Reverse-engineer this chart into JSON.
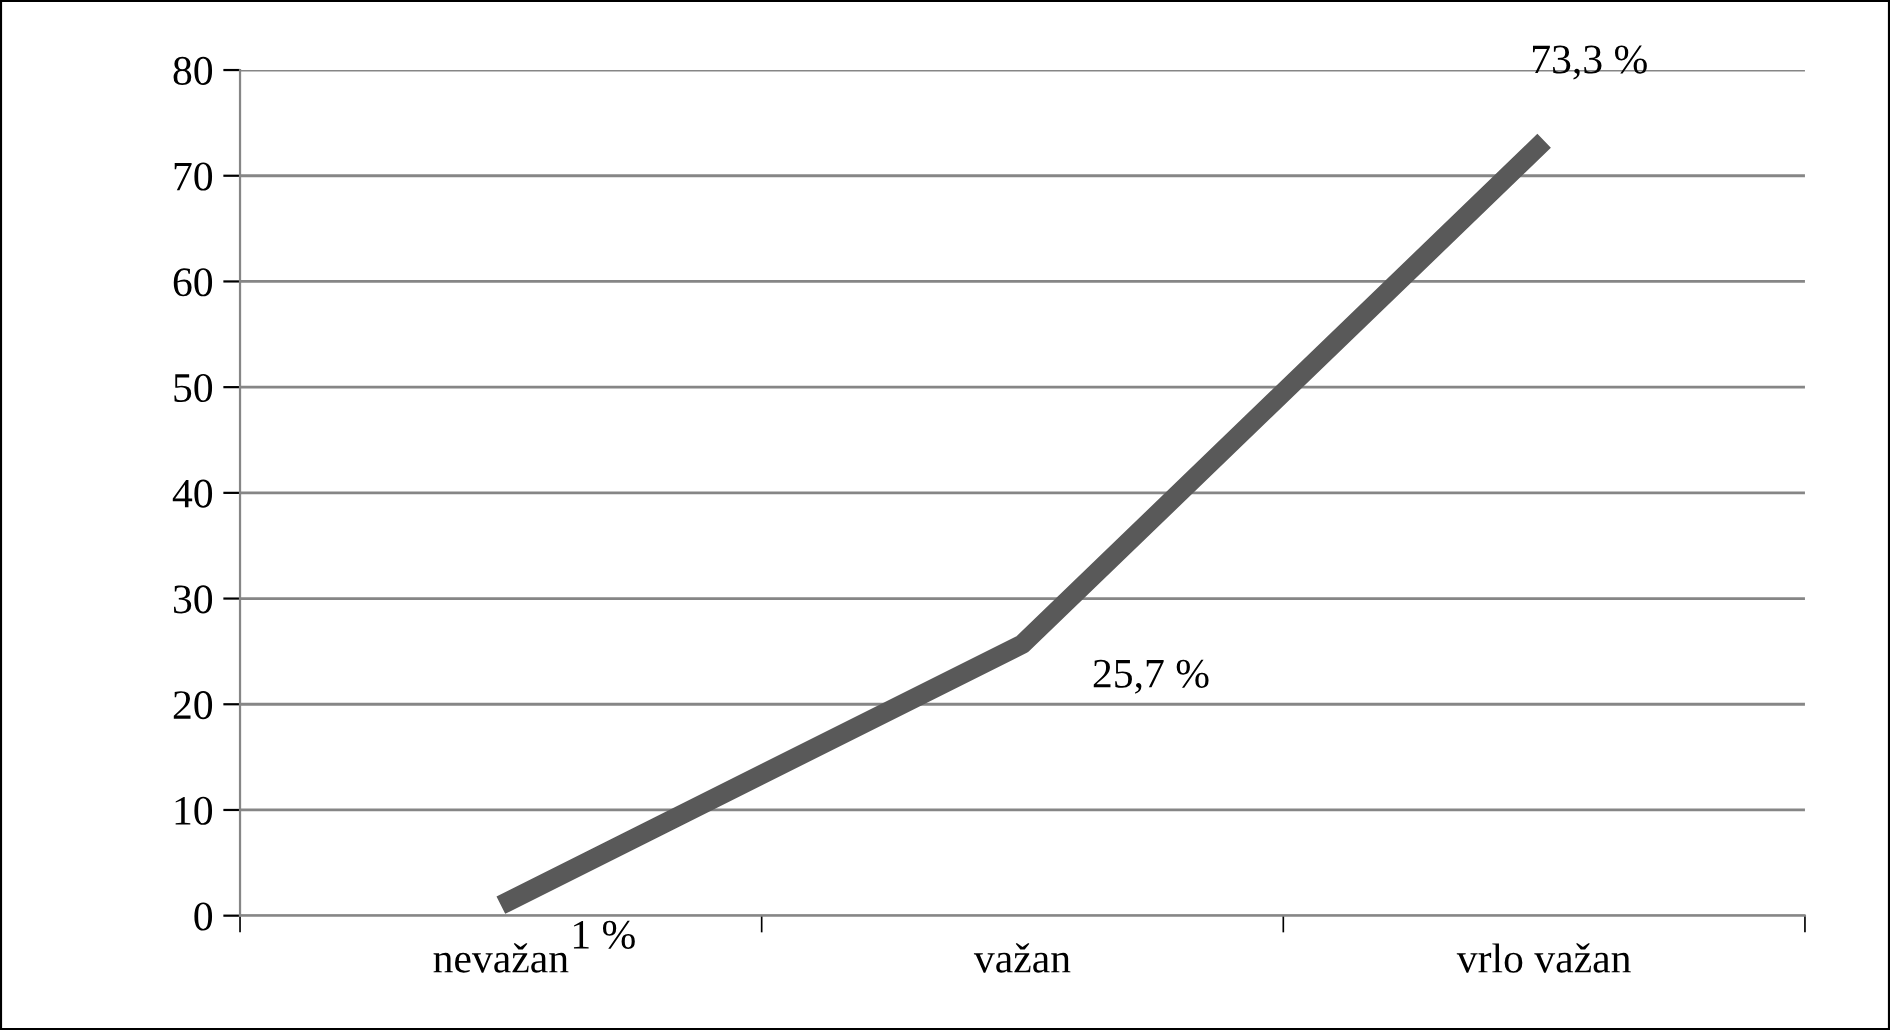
{
  "chart_data": {
    "type": "line",
    "categories": [
      "nevažan",
      "važan",
      "vrlo važan"
    ],
    "series": [
      {
        "color": "#595959",
        "values": [
          1,
          25.7,
          73.3
        ],
        "value_labels": [
          "1 %",
          "25,7 %",
          "73,3 %"
        ]
      }
    ],
    "ylim": [
      0,
      80
    ],
    "yticks": [
      0,
      10,
      20,
      30,
      40,
      50,
      60,
      70,
      80
    ],
    "grid": "y",
    "legend": false,
    "marker": "none",
    "line_style": "solid"
  }
}
